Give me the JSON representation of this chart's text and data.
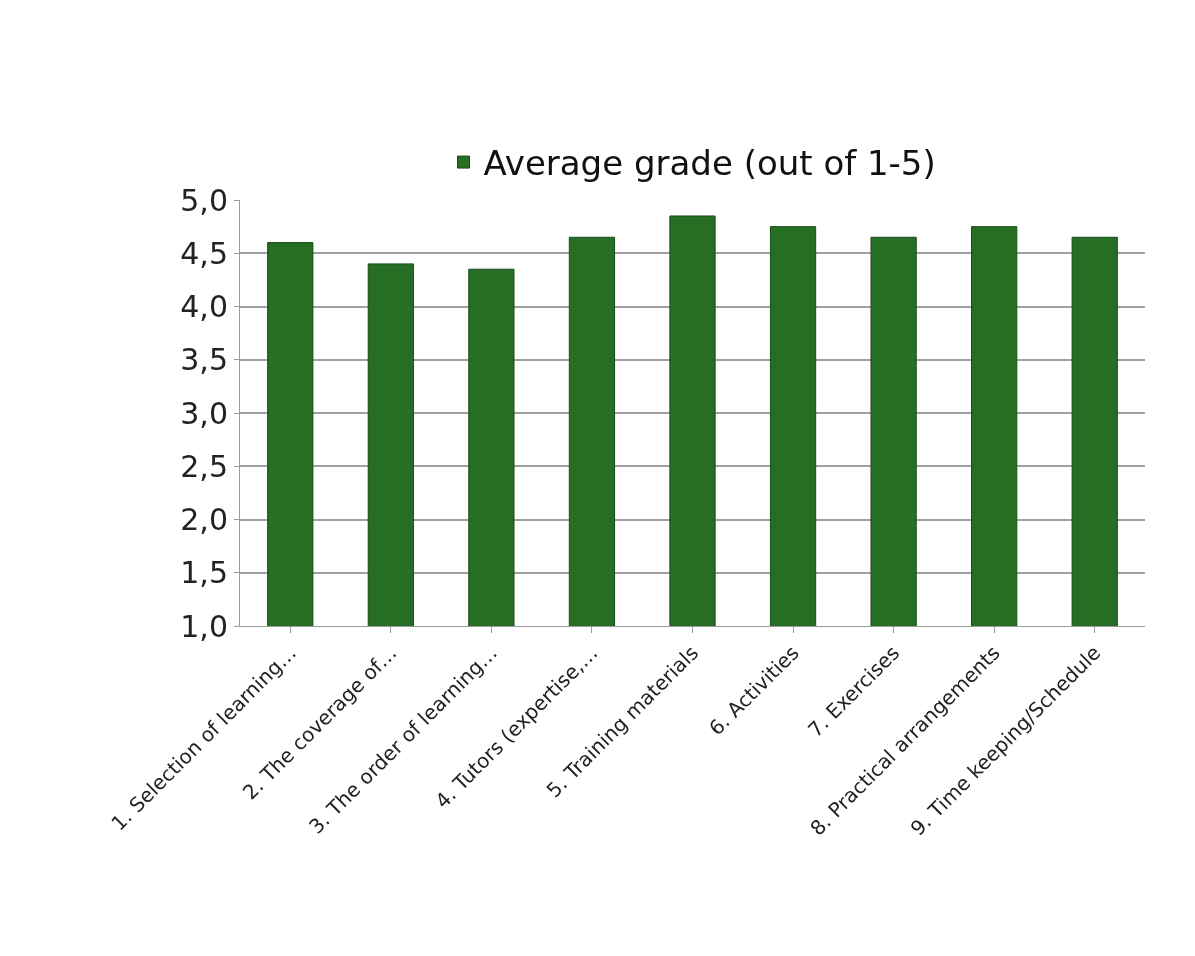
{
  "chart_data": {
    "type": "bar",
    "categories": [
      "1. Selection of learning…",
      "2. The coverage of…",
      "3. The order of learning…",
      "4. Tutors (expertise,…",
      "5. Training materials",
      "6. Activities",
      "7. Exercises",
      "8. Practical arrangements",
      "9. Time keeping/Schedule"
    ],
    "series": [
      {
        "name": "Average grade (out of 1-5)",
        "color": "#266e24",
        "values": [
          4.6,
          4.4,
          4.35,
          4.65,
          4.85,
          4.75,
          4.65,
          4.75,
          4.65
        ]
      }
    ],
    "ylim": [
      1.0,
      5.0
    ],
    "yticks": [
      {
        "value": 1.0,
        "label": "1,0"
      },
      {
        "value": 1.5,
        "label": "1,5"
      },
      {
        "value": 2.0,
        "label": "2,0"
      },
      {
        "value": 2.5,
        "label": "2,5"
      },
      {
        "value": 3.0,
        "label": "3,0"
      },
      {
        "value": 3.5,
        "label": "3,5"
      },
      {
        "value": 4.0,
        "label": "4,0"
      },
      {
        "value": 4.5,
        "label": "4,5"
      },
      {
        "value": 5.0,
        "label": "5,0"
      }
    ],
    "grid": "y",
    "legend": "top"
  }
}
